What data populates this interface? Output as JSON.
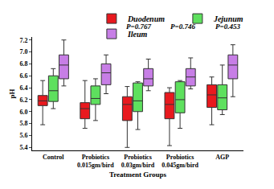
{
  "chart_data": {
    "type": "box",
    "x_label": "Treatment Groups",
    "y_label": "pH",
    "categories": [
      "Control",
      "Probiotics\n0.015gm/bird",
      "Probiotics\n0.03gm/bird",
      "Probiotics\n0.045gm/bird",
      "AGP"
    ],
    "ylim": [
      5.35,
      7.25
    ],
    "yticks": [
      5.4,
      5.6,
      5.8,
      {
        "value": 6,
        "label": "6.0"
      },
      6.2,
      6.4,
      6.6,
      6.8,
      {
        "value": 7,
        "label": "7.0"
      },
      7.2
    ],
    "grid": false,
    "legend": "top",
    "annotations": [
      "P=0.767",
      "P=0.746",
      "P=0.453"
    ],
    "series": [
      {
        "name": "Duodenum",
        "color": "#e8191e",
        "min": [
          5.78,
          5.72,
          5.4,
          5.43,
          5.78
        ],
        "q1": [
          6.1,
          5.88,
          5.85,
          5.88,
          6.07
        ],
        "median": [
          6.18,
          6.05,
          6.12,
          6.12,
          6.28
        ],
        "q3": [
          6.27,
          6.15,
          6.25,
          6.32,
          6.45
        ],
        "max": [
          6.52,
          6.52,
          6.42,
          6.4,
          6.58
        ]
      },
      {
        "name": "Jejunum",
        "color": "#5ee05e",
        "min": [
          6.05,
          5.85,
          5.7,
          5.72,
          5.95
        ],
        "q1": [
          6.17,
          6.12,
          6.0,
          5.98,
          6.03
        ],
        "median": [
          6.35,
          6.22,
          6.18,
          6.2,
          6.23
        ],
        "q3": [
          6.6,
          6.43,
          6.48,
          6.5,
          6.45
        ],
        "max": [
          6.72,
          6.55,
          6.5,
          6.52,
          6.78
        ]
      },
      {
        "name": "Ileum",
        "color": "#c77ee6",
        "min": [
          6.43,
          6.3,
          6.35,
          6.38,
          6.25
        ],
        "q1": [
          6.55,
          6.45,
          6.43,
          6.43,
          6.55
        ],
        "median": [
          6.78,
          6.65,
          6.55,
          6.58,
          6.78
        ],
        "q3": [
          6.95,
          6.8,
          6.72,
          6.72,
          6.95
        ],
        "max": [
          7.2,
          6.95,
          6.88,
          6.9,
          7.12
        ]
      }
    ]
  }
}
